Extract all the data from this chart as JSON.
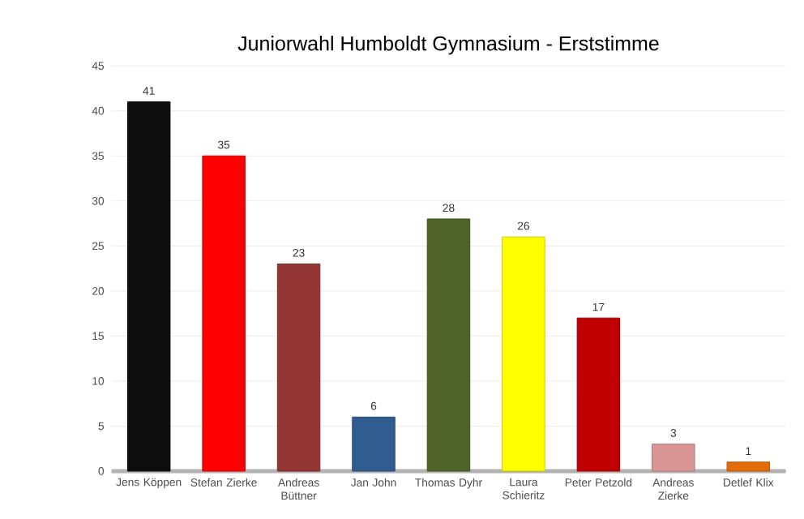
{
  "chart_data": {
    "type": "bar",
    "title": "Juniorwahl Humboldt Gymnasium - Erststimme",
    "categories": [
      "Jens Köppen",
      "Stefan Zierke",
      "Andreas Büttner",
      "Jan John",
      "Thomas Dyhr",
      "Laura Schieritz",
      "Peter Petzold",
      "Andreas Zierke",
      "Detlef Klix"
    ],
    "values": [
      41,
      35,
      23,
      6,
      28,
      26,
      17,
      3,
      1
    ],
    "colors": [
      "#0d0d0d",
      "#ff0000",
      "#943634",
      "#2f5b8f",
      "#4f6228",
      "#ffff00",
      "#c00000",
      "#d99694",
      "#e36c09"
    ],
    "ylim": [
      0,
      45
    ],
    "yticks": [
      0,
      5,
      10,
      15,
      20,
      25,
      30,
      35,
      40,
      45
    ],
    "grid": "y",
    "data_labels": true
  }
}
